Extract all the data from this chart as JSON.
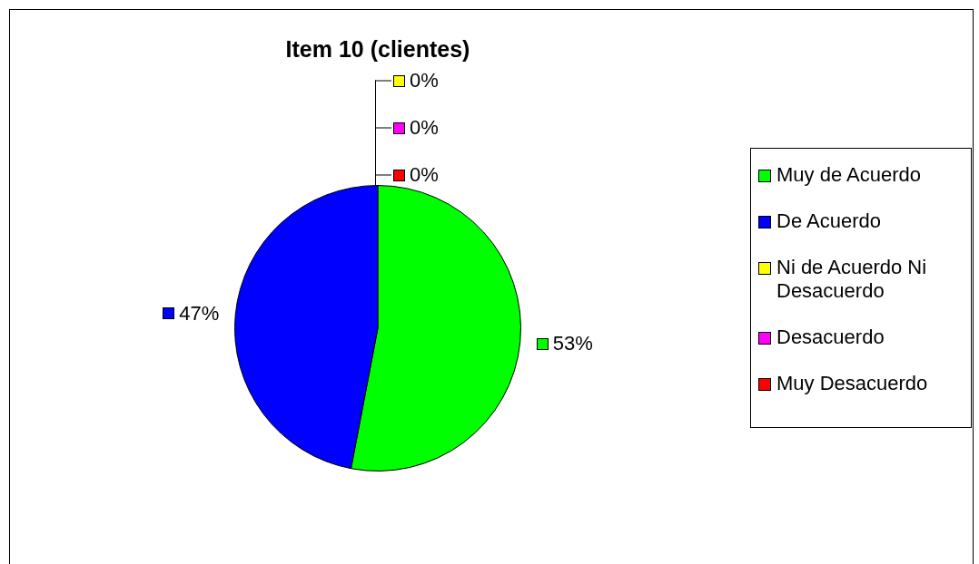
{
  "chart_data": {
    "type": "pie",
    "title": "Item 10 (clientes)",
    "categories": [
      "Muy de Acuerdo",
      "De Acuerdo",
      "Ni de Acuerdo Ni Desacuerdo",
      "Desacuerdo",
      "Muy Desacuerdo"
    ],
    "values": [
      53,
      47,
      0,
      0,
      0
    ],
    "colors": [
      "#00ff00",
      "#0000ff",
      "#ffff00",
      "#ff00ff",
      "#ff0000"
    ],
    "value_labels": [
      "53%",
      "47%",
      "0%",
      "0%",
      "0%"
    ],
    "legend": "right"
  }
}
